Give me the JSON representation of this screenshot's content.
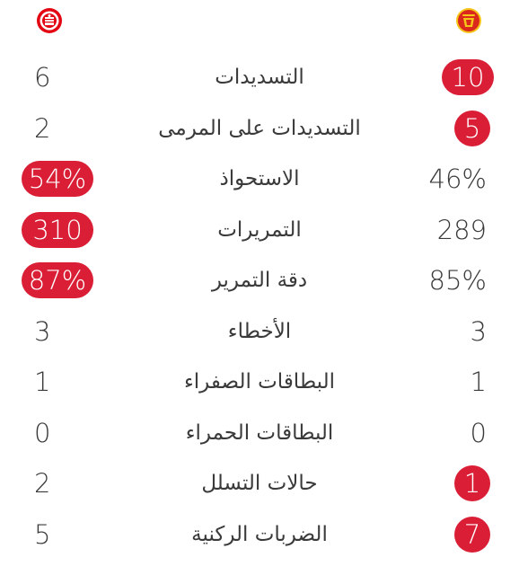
{
  "teams": {
    "left": {
      "logo_icon": "brentford-crest-icon",
      "color": "#e30613"
    },
    "right": {
      "logo_icon": "manchester-united-crest-icon",
      "color": "#da291c"
    }
  },
  "colors": {
    "highlight": "#d91e36",
    "text": "#3a3a3a",
    "background": "#ffffff"
  },
  "stats": [
    {
      "label": "التسديدات",
      "left": "6",
      "right": "10",
      "highlight": "right"
    },
    {
      "label": "التسديدات على المرمى",
      "left": "2",
      "right": "5",
      "highlight": "right"
    },
    {
      "label": "الاستحواذ",
      "left": "54%",
      "right": "46%",
      "highlight": "left"
    },
    {
      "label": "التمريرات",
      "left": "310",
      "right": "289",
      "highlight": "left"
    },
    {
      "label": "دقة التمرير",
      "left": "87%",
      "right": "85%",
      "highlight": "left"
    },
    {
      "label": "الأخطاء",
      "left": "3",
      "right": "3",
      "highlight": "none"
    },
    {
      "label": "البطاقات الصفراء",
      "left": "1",
      "right": "1",
      "highlight": "none"
    },
    {
      "label": "البطاقات الحمراء",
      "left": "0",
      "right": "0",
      "highlight": "none"
    },
    {
      "label": "حالات التسلل",
      "left": "2",
      "right": "1",
      "highlight": "right"
    },
    {
      "label": "الضربات الركنية",
      "left": "5",
      "right": "7",
      "highlight": "right"
    }
  ]
}
